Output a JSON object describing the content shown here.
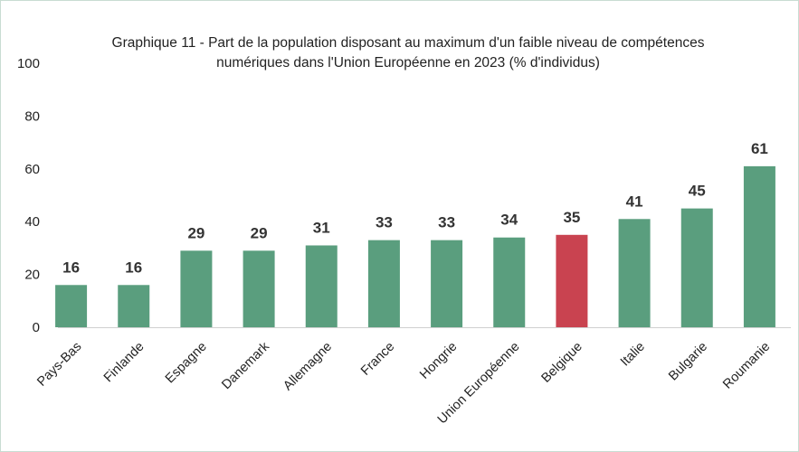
{
  "chart_data": {
    "type": "bar",
    "title": "Graphique 11 - Part de la population disposant au maximum d'un faible niveau de compétences numériques dans l'Union Européenne en 2023 (% d'individus)",
    "xlabel": "",
    "ylabel": "",
    "ylim": [
      0,
      100
    ],
    "yticks": [
      0,
      20,
      40,
      60,
      80,
      100
    ],
    "categories": [
      "Pays-Bas",
      "Finlande",
      "Espagne",
      "Danemark",
      "Allemagne",
      "France",
      "Hongrie",
      "Union Européenne",
      "Belgique",
      "Italie",
      "Bulgarie",
      "Roumanie"
    ],
    "values": [
      16,
      16,
      29,
      29,
      31,
      33,
      33,
      34,
      35,
      41,
      45,
      61
    ],
    "highlight_category": "Belgique",
    "colors": {
      "default": "#5a9e7e",
      "highlight": "#c94350"
    },
    "grid": false,
    "legend": "none"
  }
}
